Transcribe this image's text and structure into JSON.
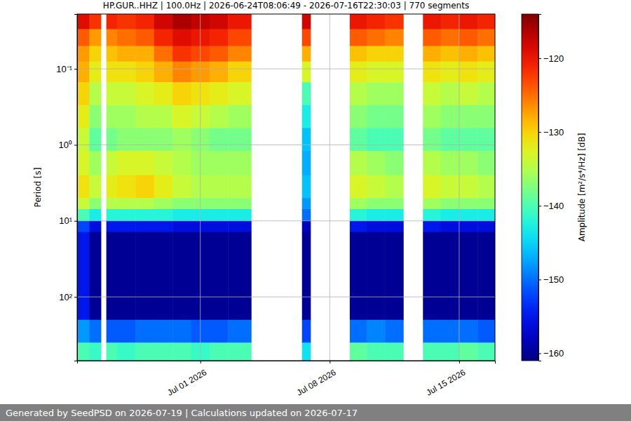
{
  "chart_data": {
    "type": "heatmap",
    "title": "HP.GUR..HHZ | 100.0Hz | 2026-06-24T08:06:49 - 2026-07-16T22:30:03 | 770 segments",
    "y_label": "Period [s]",
    "colorbar_label": "Amplitude [m²/s⁴/Hz] [dB]",
    "footer": "Generated by SeedPSD on 2026-07-19 | Calculations updated on 2026-07-17",
    "log": "y",
    "grid": true,
    "xlim": [
      "2026-06-24T08:06:49",
      "2026-07-16T22:30:03"
    ],
    "xticks": [
      {
        "value": "2026-07-01T00:00:00",
        "label": "Jul 01 2026"
      },
      {
        "value": "2026-07-08T00:00:00",
        "label": "Jul 08 2026"
      },
      {
        "value": "2026-07-15T00:00:00",
        "label": "Jul 15 2026"
      }
    ],
    "ylim": [
      0.019,
      690
    ],
    "yticks": [
      {
        "value": 0.1,
        "label": "10⁻¹"
      },
      {
        "value": 1,
        "label": "10⁰"
      },
      {
        "value": 10,
        "label": "10¹"
      },
      {
        "value": 100,
        "label": "10²"
      }
    ],
    "colorbar_lim": [
      -161,
      -114
    ],
    "colorbar_ticks": [
      -160,
      -150,
      -140,
      -130,
      -120
    ],
    "time_bins": [
      "2026-06-24T08:06:49",
      "2026-06-25T00:00:00",
      "2026-06-25T15:00:00",
      "2026-06-25T22:00:00",
      "2026-06-26T12:00:00",
      "2026-06-27T12:00:00",
      "2026-06-28T12:00:00",
      "2026-06-29T12:00:00",
      "2026-06-30T12:00:00",
      "2026-07-01T12:00:00",
      "2026-07-02T12:00:00",
      "2026-07-03T18:00:00",
      "2026-07-06T12:00:00",
      "2026-07-06T23:00:00",
      "2026-07-09T02:00:00",
      "2026-07-10T00:00:00",
      "2026-07-11T00:00:00",
      "2026-07-11T23:30:00",
      "2026-07-13T01:00:00",
      "2026-07-14T00:00:00",
      "2026-07-15T00:00:00",
      "2026-07-16T00:00:00",
      "2026-07-16T22:30:03"
    ],
    "period_bins": [
      0.019,
      0.03,
      0.05,
      0.08,
      0.15,
      0.3,
      0.6,
      1.2,
      2.5,
      5,
      7,
      10,
      14,
      200,
      400,
      690
    ],
    "cells": [
      [
        -119,
        -122,
        null,
        -121,
        -122,
        -121,
        -118,
        -116,
        -117,
        -118,
        -120,
        null,
        -118,
        null,
        -120,
        -121,
        -122,
        null,
        -120,
        -121,
        -120,
        -121
      ],
      [
        -124,
        -127,
        null,
        -126,
        -125,
        -124,
        -121,
        -119,
        -120,
        -121,
        -123,
        null,
        -123,
        null,
        -124,
        -125,
        -126,
        null,
        -124,
        -125,
        -124,
        -125
      ],
      [
        -127,
        -130,
        null,
        -129,
        -128,
        -128,
        -125,
        -122,
        -123,
        -124,
        -126,
        null,
        -128,
        null,
        -129,
        -130,
        -130,
        null,
        -128,
        -129,
        -128,
        -129
      ],
      [
        -128,
        -132,
        null,
        -131,
        -131,
        -130,
        -128,
        -126,
        -127,
        -128,
        -130,
        null,
        -133,
        null,
        -132,
        -133,
        -133,
        null,
        -131,
        -132,
        -131,
        -132
      ],
      [
        -130,
        -135,
        null,
        -134,
        -134,
        -133,
        -132,
        -130,
        -131,
        -132,
        -133,
        null,
        -140,
        null,
        -135,
        -136,
        -136,
        null,
        -134,
        -135,
        -134,
        -135
      ],
      [
        -132,
        -137,
        null,
        -136,
        -136,
        -135,
        -135,
        -133,
        -134,
        -135,
        -136,
        null,
        -143,
        null,
        -137,
        -138,
        -138,
        null,
        -136,
        -137,
        -137,
        -137
      ],
      [
        -134,
        -139,
        null,
        -138,
        -137,
        -137,
        -137,
        -136,
        -137,
        -138,
        -138,
        null,
        -146,
        null,
        -139,
        -140,
        -140,
        null,
        -138,
        -139,
        -139,
        -139
      ],
      [
        -133,
        -136,
        null,
        -134,
        -133,
        -133,
        -134,
        -135,
        -136,
        -136,
        -136,
        null,
        -147,
        null,
        -135,
        -136,
        -137,
        null,
        -135,
        -136,
        -136,
        -137
      ],
      [
        -131,
        -134,
        null,
        -132,
        -131,
        -130,
        -132,
        -134,
        -135,
        -135,
        -135,
        null,
        -146,
        null,
        -133,
        -134,
        -135,
        null,
        -133,
        -134,
        -134,
        -135
      ],
      [
        -134,
        -137,
        null,
        -135,
        -135,
        -135,
        -136,
        -137,
        -137,
        -137,
        -137,
        null,
        -148,
        null,
        -136,
        -137,
        -137,
        null,
        -136,
        -137,
        -137,
        -137
      ],
      [
        -140,
        -143,
        null,
        -142,
        -142,
        -142,
        -142,
        -143,
        -143,
        -143,
        -143,
        null,
        -150,
        null,
        -142,
        -143,
        -143,
        null,
        -142,
        -143,
        -143,
        -143
      ],
      [
        -152,
        -156,
        null,
        -155,
        -155,
        -155,
        -155,
        -156,
        -156,
        -156,
        -156,
        null,
        -158,
        null,
        -155,
        -156,
        -156,
        null,
        -155,
        -156,
        -156,
        -156
      ],
      [
        -155,
        -160,
        null,
        -160,
        -160,
        -160,
        -160,
        -160,
        -160,
        -160,
        -160,
        null,
        -160,
        null,
        -160,
        -160,
        -160,
        null,
        -160,
        -160,
        -160,
        -160
      ],
      [
        -148,
        -150,
        null,
        -151,
        -151,
        -150,
        -150,
        -150,
        -151,
        -151,
        -150,
        null,
        -152,
        null,
        -150,
        -149,
        -150,
        null,
        -150,
        -150,
        -150,
        -151
      ],
      [
        -140,
        -141,
        null,
        -140,
        -141,
        -140,
        -140,
        -140,
        -141,
        -140,
        -140,
        null,
        -144,
        null,
        -139,
        -140,
        -140,
        null,
        -140,
        -140,
        -139,
        -140
      ]
    ]
  }
}
